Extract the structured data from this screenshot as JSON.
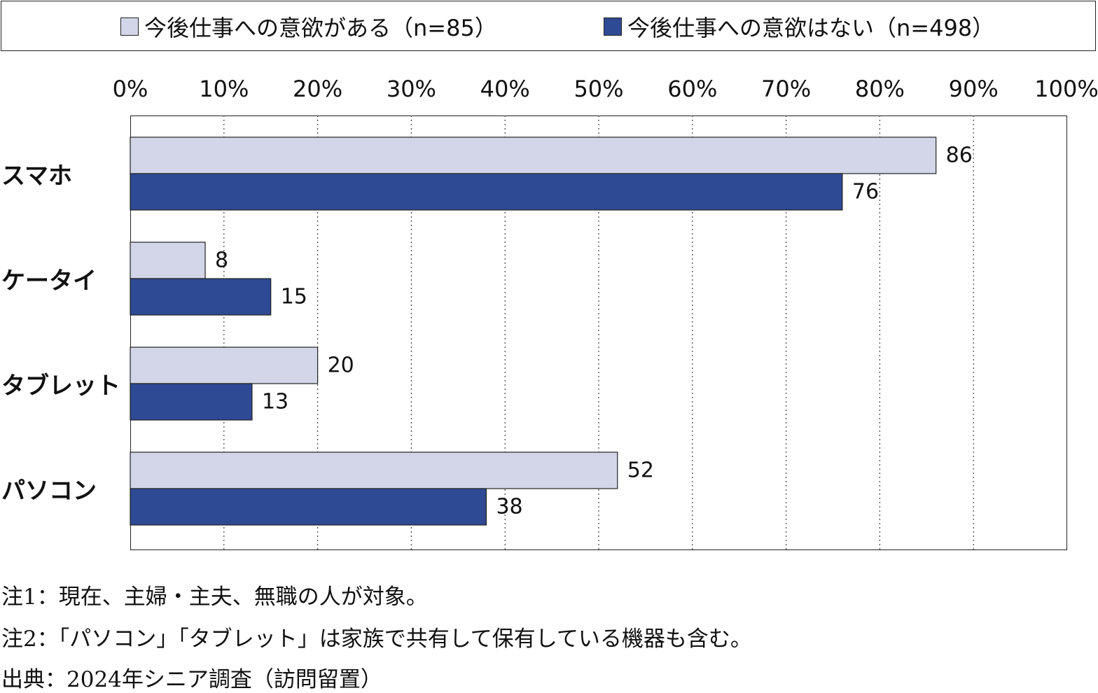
{
  "chart_data": {
    "type": "bar",
    "orientation": "horizontal",
    "categories": [
      "スマホ",
      "ケータイ",
      "タブレット",
      "パソコン"
    ],
    "series": [
      {
        "name": "今後仕事への意欲がある（n=85）",
        "values": [
          86,
          8,
          20,
          52
        ],
        "color": "#d3d6e8"
      },
      {
        "name": "今後仕事への意欲はない（n=498）",
        "values": [
          76,
          15,
          13,
          38
        ],
        "color": "#2f4a94"
      }
    ],
    "xlim": [
      0,
      100
    ],
    "x_ticks": [
      "0%",
      "10%",
      "20%",
      "30%",
      "40%",
      "50%",
      "60%",
      "70%",
      "80%",
      "90%",
      "100%"
    ],
    "grid": "vertical-dotted",
    "legend_position": "top"
  },
  "notes": [
    "注1：現在、主婦・主夫、無職の人が対象。",
    "注2：「パソコン」「タブレット」は家族で共有して保有している機器も含む。",
    "出典：2024年シニア調査（訪問留置）"
  ]
}
